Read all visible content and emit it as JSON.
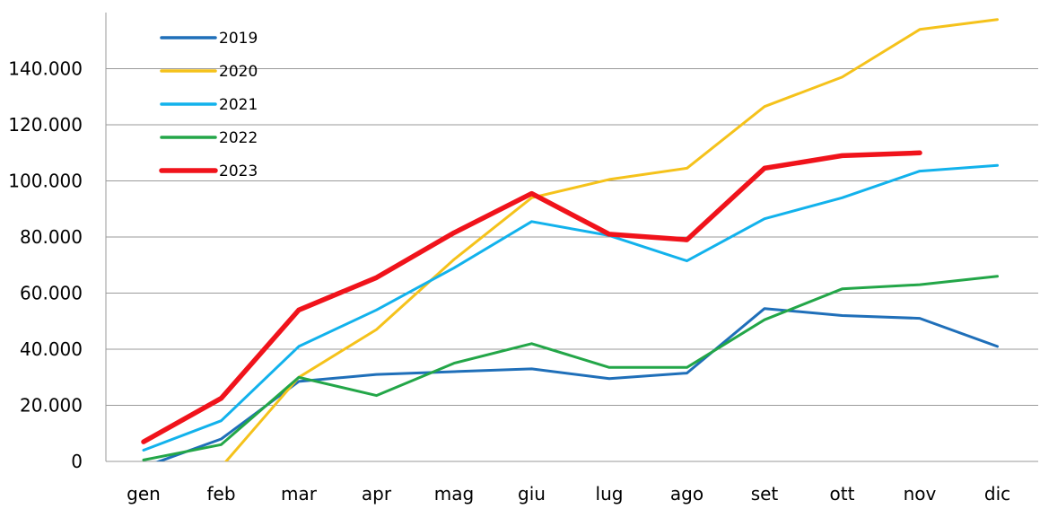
{
  "chart_data": {
    "type": "line",
    "title": "",
    "xlabel": "",
    "ylabel": "",
    "categories": [
      "gen",
      "feb",
      "mar",
      "apr",
      "mag",
      "giu",
      "lug",
      "ago",
      "set",
      "ott",
      "nov",
      "dic"
    ],
    "ylim": [
      0,
      160000
    ],
    "yticks": [
      0,
      20000,
      40000,
      60000,
      80000,
      100000,
      120000,
      140000
    ],
    "ytick_labels": [
      "0",
      "20.000",
      "40.000",
      "60.000",
      "80.000",
      "100.000",
      "120.000",
      "140.000"
    ],
    "grid": "horizontal",
    "legend_position": "top-left",
    "series": [
      {
        "name": "2019",
        "color": "#1f6fb9",
        "values": [
          -2000,
          8000,
          28500,
          31000,
          32000,
          33000,
          29500,
          31500,
          54500,
          52000,
          51000,
          41000
        ]
      },
      {
        "name": "2020",
        "color": "#f5c21b",
        "values": [
          null,
          -2000,
          30000,
          47000,
          72000,
          94000,
          100500,
          104500,
          126500,
          137000,
          154000,
          157500
        ]
      },
      {
        "name": "2021",
        "color": "#12b2ec",
        "values": [
          4000,
          14500,
          41000,
          54000,
          69000,
          85500,
          80500,
          71500,
          86500,
          94000,
          103500,
          105500
        ]
      },
      {
        "name": "2022",
        "color": "#23a648",
        "values": [
          500,
          6000,
          30000,
          23500,
          35000,
          42000,
          33500,
          33500,
          50500,
          61500,
          63000,
          66000
        ]
      },
      {
        "name": "2023",
        "color": "#f0131b",
        "values": [
          7000,
          22500,
          54000,
          65500,
          81500,
          95500,
          81000,
          79000,
          104500,
          109000,
          110000,
          null
        ]
      }
    ]
  }
}
